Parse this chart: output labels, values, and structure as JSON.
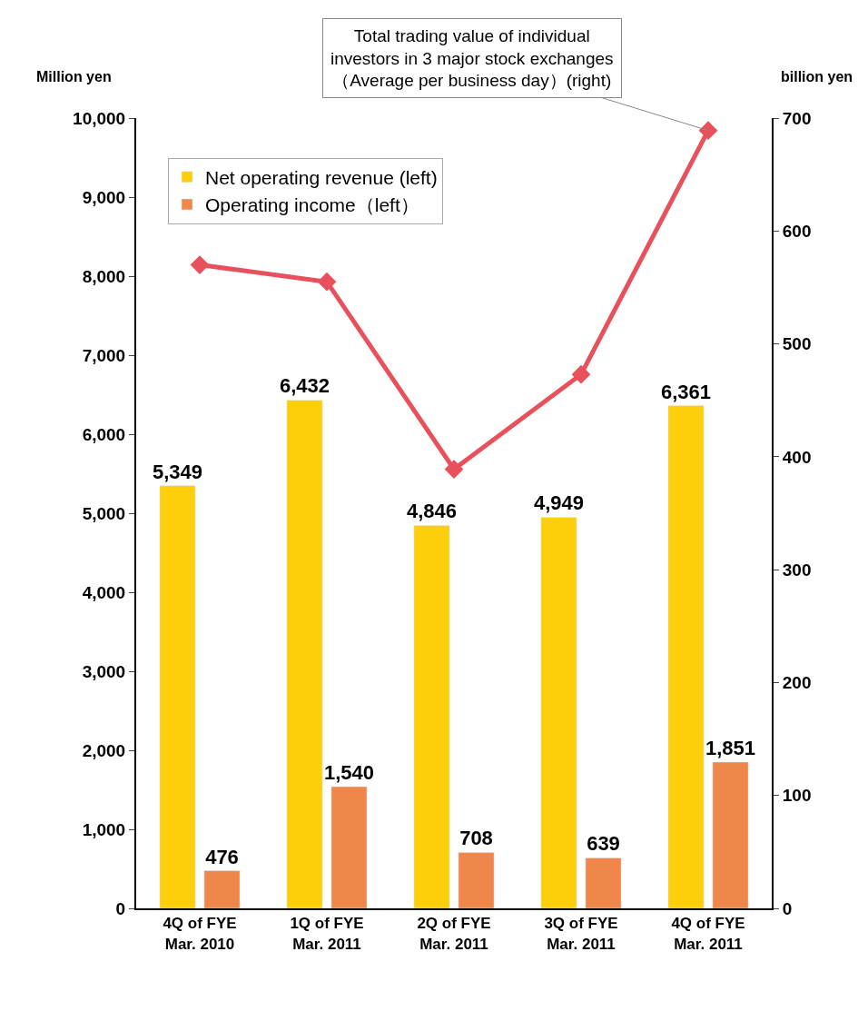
{
  "chart_data": {
    "type": "bar",
    "categories": [
      "4Q of FYE\nMar. 2010",
      "1Q of FYE\nMar. 2011",
      "2Q of FYE\nMar. 2011",
      "3Q of FYE\nMar. 2011",
      "4Q of FYE\nMar. 2011"
    ],
    "ylabel": "Million yen",
    "y2label": "billion yen",
    "series": [
      {
        "name": "Net operating revenue (left)",
        "color": "#fccf0a",
        "values": [
          5349,
          6432,
          4846,
          4949,
          6361
        ],
        "value_labels": [
          "5,349",
          "6,432",
          "4,846",
          "4,949",
          "6,361"
        ]
      },
      {
        "name": "Operating income（left）",
        "color": "#ef864a",
        "values": [
          476,
          1540,
          708,
          639,
          1851
        ],
        "value_labels": [
          "476",
          "1,540",
          "708",
          "639",
          "1,851"
        ]
      },
      {
        "name": "Total trading value of individual\ninvestors in 3 major stock exchanges\n（Average per business day）(right)",
        "type": "line",
        "axis": "y2",
        "color": "#e8505b",
        "marker": "diamond",
        "values": [
          570,
          555,
          389,
          473,
          689
        ]
      }
    ],
    "ylim": [
      0,
      10000
    ],
    "yticks": [
      0,
      {
        "value": 1000,
        "label": "1,000"
      },
      {
        "value": 2000,
        "label": "2,000"
      },
      {
        "value": 3000,
        "label": "3,000"
      },
      {
        "value": 4000,
        "label": "4,000"
      },
      {
        "value": 5000,
        "label": "5,000"
      },
      {
        "value": 6000,
        "label": "6,000"
      },
      {
        "value": 7000,
        "label": "7,000"
      },
      {
        "value": 8000,
        "label": "8,000"
      },
      {
        "value": 9000,
        "label": "9,000"
      },
      {
        "value": 10000,
        "label": "10,000"
      }
    ],
    "y2lim": [
      0,
      700
    ],
    "y2ticks": [
      0,
      100,
      200,
      300,
      400,
      500,
      600,
      700
    ],
    "legend": "top left"
  }
}
